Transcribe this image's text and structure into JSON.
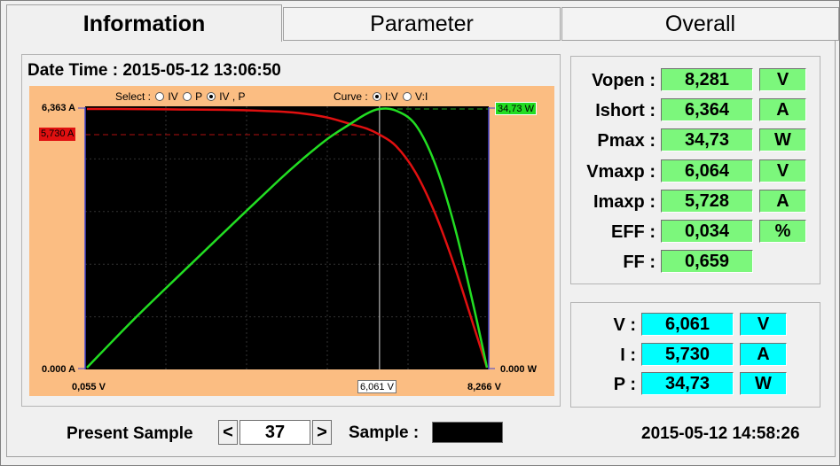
{
  "tabs": [
    "Information",
    "Parameter",
    "Overall"
  ],
  "date_time_label": "Date Time : 2015-05-12 13:06:50",
  "chart": {
    "select_label": "Select :",
    "select_options": [
      "IV",
      "P",
      "IV , P"
    ],
    "curve_label": "Curve :",
    "curve_options": [
      "I:V",
      "V:I"
    ],
    "y_left_top": "6,363 A",
    "y_left_bottom": "0.000 A",
    "y_right_top": "34,73 W",
    "y_right_bottom": "0.000 W",
    "x_left": "0,055 V",
    "x_right": "8,266 V",
    "marker_current": "5,730 A",
    "marker_voltage": "6,061 V",
    "colors": {
      "background": "#fbbd82",
      "plot": "#000000",
      "iv_curve": "#e01010",
      "p_curve": "#22dd22",
      "current_tag": "#e01010",
      "power_tag": "#22dd22"
    }
  },
  "chart_data": {
    "type": "line",
    "xlabel": "",
    "ylabel": "",
    "xlim": [
      0.055,
      8.266
    ],
    "ylim_left": [
      0,
      6.363
    ],
    "ylim_right": [
      0,
      34.73
    ],
    "series": [
      {
        "x": [
          0.055,
          1.0,
          2.0,
          3.0,
          4.0,
          4.5,
          5.0,
          5.5,
          5.8,
          6.061,
          6.4,
          6.8,
          7.2,
          7.6,
          8.0,
          8.266
        ],
        "values": [
          6.363,
          6.36,
          6.35,
          6.34,
          6.3,
          6.25,
          6.15,
          5.98,
          5.88,
          5.73,
          5.45,
          4.8,
          3.8,
          2.5,
          1.0,
          0.0
        ]
      },
      {
        "x": [
          0.055,
          1.0,
          2.0,
          3.0,
          4.0,
          4.5,
          5.0,
          5.5,
          5.8,
          6.061,
          6.4,
          6.8,
          7.2,
          7.6,
          8.0,
          8.266
        ],
        "values": [
          0.0,
          6.36,
          12.7,
          19.0,
          25.2,
          28.1,
          30.75,
          32.9,
          34.1,
          34.73,
          34.5,
          32.6,
          27.4,
          19.0,
          8.0,
          0.0
        ]
      }
    ],
    "markers": {
      "vmaxp": 6.061,
      "imaxp": 5.73
    }
  },
  "values": {
    "rows": [
      {
        "label": "Vopen :",
        "value": "8,281",
        "unit": "V"
      },
      {
        "label": "Ishort :",
        "value": "6,364",
        "unit": "A"
      },
      {
        "label": "Pmax :",
        "value": "34,73",
        "unit": "W"
      },
      {
        "label": "Vmaxp :",
        "value": "6,064",
        "unit": "V"
      },
      {
        "label": "Imaxp :",
        "value": "5,728",
        "unit": "A"
      },
      {
        "label": "EFF :",
        "value": "0,034",
        "unit": "%"
      },
      {
        "label": "FF :",
        "value": "0,659",
        "unit": ""
      }
    ]
  },
  "cursor": {
    "rows": [
      {
        "label": "V :",
        "value": "6,061",
        "unit": "V"
      },
      {
        "label": "I  :",
        "value": "5,730",
        "unit": "A"
      },
      {
        "label": "P :",
        "value": "34,73",
        "unit": "W"
      }
    ]
  },
  "bottom": {
    "present_sample_label": "Present Sample",
    "prev": "<",
    "next": ">",
    "sample_number": "37",
    "sample_label": "Sample :",
    "timestamp": "2015-05-12 14:58:26"
  }
}
